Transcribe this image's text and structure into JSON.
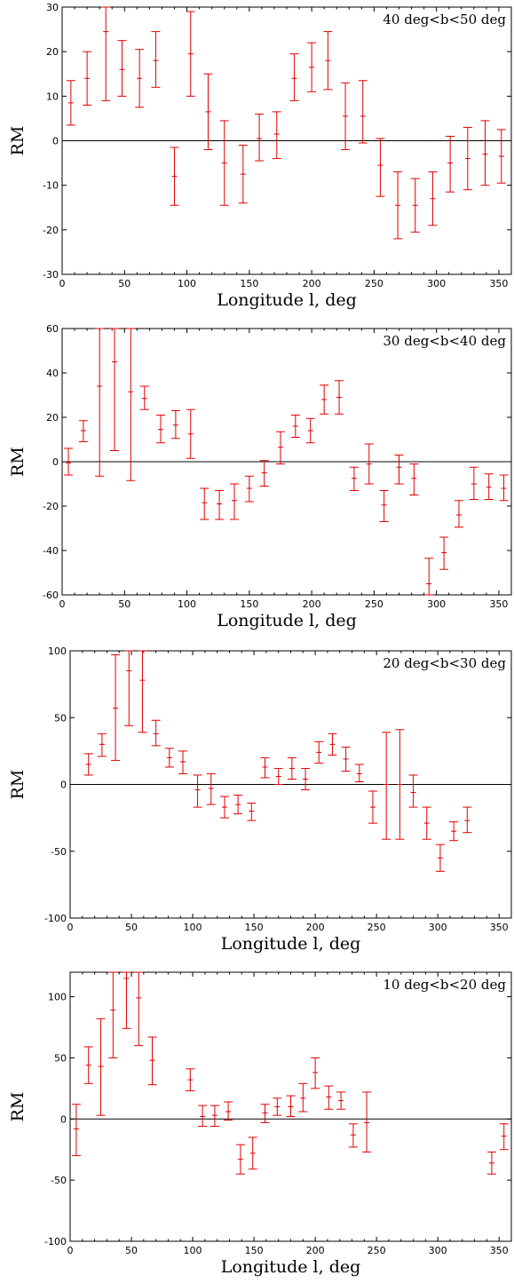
{
  "colors": {
    "errorbar": "#e00000",
    "axis": "#000000",
    "zeroline": "#000000"
  },
  "chart_data": [
    {
      "type": "scatter",
      "title": "40 deg<b<50 deg",
      "xlabel": "Longitude l, deg",
      "ylabel": "RM",
      "xlim": [
        0,
        360
      ],
      "ylim": [
        -30,
        30
      ],
      "xticks": [
        0,
        50,
        100,
        150,
        200,
        250,
        300,
        350
      ],
      "yticks": [
        -30,
        -20,
        -10,
        0,
        10,
        20,
        30
      ],
      "points": [
        {
          "x": 7,
          "y": 8.5,
          "lo": 3.5,
          "hi": 13.5
        },
        {
          "x": 20,
          "y": 14,
          "lo": 8,
          "hi": 20
        },
        {
          "x": 35,
          "y": 24.5,
          "lo": 9,
          "hi": 30
        },
        {
          "x": 48,
          "y": 16,
          "lo": 10,
          "hi": 22.5
        },
        {
          "x": 62,
          "y": 14,
          "lo": 7.5,
          "hi": 20.5
        },
        {
          "x": 75,
          "y": 18,
          "lo": 12,
          "hi": 24.5
        },
        {
          "x": 90,
          "y": -8,
          "lo": -14.5,
          "hi": -1.5
        },
        {
          "x": 103,
          "y": 19.5,
          "lo": 10,
          "hi": 29
        },
        {
          "x": 117,
          "y": 6.5,
          "lo": -2,
          "hi": 15
        },
        {
          "x": 130,
          "y": -5,
          "lo": -14.5,
          "hi": 4.5
        },
        {
          "x": 145,
          "y": -7.5,
          "lo": -14,
          "hi": -1
        },
        {
          "x": 158,
          "y": 0.5,
          "lo": -4.5,
          "hi": 6
        },
        {
          "x": 172,
          "y": 1.5,
          "lo": -4,
          "hi": 6.5
        },
        {
          "x": 186,
          "y": 14,
          "lo": 9,
          "hi": 19.5
        },
        {
          "x": 200,
          "y": 16.5,
          "lo": 11,
          "hi": 22
        },
        {
          "x": 213,
          "y": 18,
          "lo": 11.5,
          "hi": 24.5
        },
        {
          "x": 227,
          "y": 5.5,
          "lo": -2,
          "hi": 13
        },
        {
          "x": 241,
          "y": 5.5,
          "lo": -0.5,
          "hi": 13.5
        },
        {
          "x": 255,
          "y": -5.5,
          "lo": -12.5,
          "hi": 0.5
        },
        {
          "x": 269,
          "y": -14.5,
          "lo": -22,
          "hi": -7
        },
        {
          "x": 283,
          "y": -14.5,
          "lo": -20.5,
          "hi": -8.5
        },
        {
          "x": 297,
          "y": -13,
          "lo": -19,
          "hi": -7
        },
        {
          "x": 311,
          "y": -5,
          "lo": -11.5,
          "hi": 1
        },
        {
          "x": 325,
          "y": -4,
          "lo": -11,
          "hi": 3
        },
        {
          "x": 339,
          "y": -3,
          "lo": -10,
          "hi": 4.5
        },
        {
          "x": 352,
          "y": -3.5,
          "lo": -9.5,
          "hi": 2.5
        }
      ]
    },
    {
      "type": "scatter",
      "title": "30 deg<b<40 deg",
      "xlabel": "Longitude l, deg",
      "ylabel": "RM",
      "xlim": [
        0,
        360
      ],
      "ylim": [
        -60,
        60
      ],
      "xticks": [
        0,
        50,
        100,
        150,
        200,
        250,
        300,
        350
      ],
      "yticks": [
        -60,
        -40,
        -20,
        0,
        20,
        40,
        60
      ],
      "points": [
        {
          "x": 5,
          "y": -0.5,
          "lo": -6,
          "hi": 6
        },
        {
          "x": 17,
          "y": 14,
          "lo": 9,
          "hi": 18.5
        },
        {
          "x": 30,
          "y": 34,
          "lo": -6.5,
          "hi": 60
        },
        {
          "x": 42,
          "y": 45,
          "lo": 5,
          "hi": 60
        },
        {
          "x": 55,
          "y": 31.5,
          "lo": -8.5,
          "hi": 60
        },
        {
          "x": 66,
          "y": 28.5,
          "lo": 23.5,
          "hi": 34
        },
        {
          "x": 79,
          "y": 14.5,
          "lo": 8.5,
          "hi": 21
        },
        {
          "x": 91,
          "y": 16.5,
          "lo": 10.5,
          "hi": 23
        },
        {
          "x": 103,
          "y": 12.5,
          "lo": 1.5,
          "hi": 23.5
        },
        {
          "x": 114,
          "y": -18.5,
          "lo": -26,
          "hi": -12
        },
        {
          "x": 126,
          "y": -19,
          "lo": -26,
          "hi": -13
        },
        {
          "x": 138,
          "y": -17.5,
          "lo": -26,
          "hi": -10
        },
        {
          "x": 150,
          "y": -12,
          "lo": -18,
          "hi": -6.5
        },
        {
          "x": 162,
          "y": -5,
          "lo": -11,
          "hi": 0.5
        },
        {
          "x": 175,
          "y": 6.5,
          "lo": -1,
          "hi": 13.5
        },
        {
          "x": 187,
          "y": 16,
          "lo": 11,
          "hi": 21
        },
        {
          "x": 199,
          "y": 14,
          "lo": 8.5,
          "hi": 19.5
        },
        {
          "x": 210,
          "y": 28,
          "lo": 21.5,
          "hi": 34.5
        },
        {
          "x": 222,
          "y": 29,
          "lo": 21.5,
          "hi": 36.5
        },
        {
          "x": 234,
          "y": -7.5,
          "lo": -13,
          "hi": -2.5
        },
        {
          "x": 246,
          "y": -1,
          "lo": -10,
          "hi": 8
        },
        {
          "x": 258,
          "y": -19.5,
          "lo": -27,
          "hi": -13
        },
        {
          "x": 270,
          "y": -2.5,
          "lo": -10,
          "hi": 3
        },
        {
          "x": 282,
          "y": -7.5,
          "lo": -15,
          "hi": -1
        },
        {
          "x": 294,
          "y": -55,
          "lo": -60,
          "hi": -43.5
        },
        {
          "x": 306,
          "y": -41,
          "lo": -48.5,
          "hi": -34
        },
        {
          "x": 318,
          "y": -24,
          "lo": -29.5,
          "hi": -17.5
        },
        {
          "x": 330,
          "y": -10,
          "lo": -17,
          "hi": -2.5
        },
        {
          "x": 342,
          "y": -11.5,
          "lo": -17,
          "hi": -5.5
        },
        {
          "x": 354,
          "y": -12,
          "lo": -17.5,
          "hi": -6
        }
      ]
    },
    {
      "type": "scatter",
      "title": "20 deg<b<30 deg",
      "xlabel": "Longitude l, deg",
      "ylabel": "RM",
      "xlim": [
        0,
        360
      ],
      "ylim": [
        -100,
        100
      ],
      "xticks": [
        0,
        50,
        100,
        150,
        200,
        250,
        300,
        350
      ],
      "yticks": [
        -100,
        -50,
        0,
        50,
        100
      ],
      "points": [
        {
          "x": 15,
          "y": 15,
          "lo": 7,
          "hi": 23
        },
        {
          "x": 26,
          "y": 30,
          "lo": 21,
          "hi": 38
        },
        {
          "x": 37,
          "y": 57,
          "lo": 18,
          "hi": 97
        },
        {
          "x": 48,
          "y": 85,
          "lo": 44,
          "hi": 100
        },
        {
          "x": 59,
          "y": 78,
          "lo": 39,
          "hi": 100
        },
        {
          "x": 70,
          "y": 38,
          "lo": 29,
          "hi": 48
        },
        {
          "x": 81,
          "y": 20,
          "lo": 13,
          "hi": 27
        },
        {
          "x": 92,
          "y": 17,
          "lo": 8,
          "hi": 25
        },
        {
          "x": 104,
          "y": -4,
          "lo": -17,
          "hi": 7
        },
        {
          "x": 115,
          "y": -3,
          "lo": -15,
          "hi": 8
        },
        {
          "x": 126,
          "y": -17,
          "lo": -25,
          "hi": -9
        },
        {
          "x": 137,
          "y": -15,
          "lo": -22,
          "hi": -8
        },
        {
          "x": 148,
          "y": -20,
          "lo": -27,
          "hi": -14
        },
        {
          "x": 159,
          "y": 13,
          "lo": 5,
          "hi": 20
        },
        {
          "x": 170,
          "y": 6,
          "lo": 0,
          "hi": 12
        },
        {
          "x": 181,
          "y": 12,
          "lo": 4,
          "hi": 20
        },
        {
          "x": 192,
          "y": 4,
          "lo": -4,
          "hi": 12
        },
        {
          "x": 203,
          "y": 24,
          "lo": 16,
          "hi": 32
        },
        {
          "x": 214,
          "y": 30,
          "lo": 22,
          "hi": 38
        },
        {
          "x": 225,
          "y": 19,
          "lo": 10,
          "hi": 28
        },
        {
          "x": 236,
          "y": 8,
          "lo": 2,
          "hi": 15
        },
        {
          "x": 247,
          "y": -17,
          "lo": -29,
          "hi": -5
        },
        {
          "x": 258,
          "y": 0,
          "lo": -41,
          "hi": 39
        },
        {
          "x": 269,
          "y": 0,
          "lo": -41,
          "hi": 41
        },
        {
          "x": 280,
          "y": -6,
          "lo": -17,
          "hi": 7
        },
        {
          "x": 291,
          "y": -29,
          "lo": -41,
          "hi": -17
        },
        {
          "x": 302,
          "y": -55,
          "lo": -65,
          "hi": -45
        },
        {
          "x": 313,
          "y": -35,
          "lo": -42,
          "hi": -28
        },
        {
          "x": 324,
          "y": -27,
          "lo": -36,
          "hi": -17
        }
      ]
    },
    {
      "type": "scatter",
      "title": "10 deg<b<20 deg",
      "xlabel": "Longitude l, deg",
      "ylabel": "RM",
      "xlim": [
        0,
        360
      ],
      "ylim": [
        -100,
        120
      ],
      "xticks": [
        0,
        50,
        100,
        150,
        200,
        250,
        300,
        350
      ],
      "yticks": [
        -100,
        -50,
        0,
        50,
        100
      ],
      "points": [
        {
          "x": 5,
          "y": -8,
          "lo": -30,
          "hi": 12
        },
        {
          "x": 15,
          "y": 44,
          "lo": 29,
          "hi": 59
        },
        {
          "x": 25,
          "y": 43,
          "lo": 3,
          "hi": 82
        },
        {
          "x": 35,
          "y": 89,
          "lo": 50,
          "hi": 120
        },
        {
          "x": 46,
          "y": 115,
          "lo": 74,
          "hi": 120
        },
        {
          "x": 56,
          "y": 99,
          "lo": 60,
          "hi": 120
        },
        {
          "x": 67,
          "y": 48,
          "lo": 28,
          "hi": 67
        },
        {
          "x": 98,
          "y": 32,
          "lo": 23,
          "hi": 41
        },
        {
          "x": 108,
          "y": 2,
          "lo": -6,
          "hi": 11
        },
        {
          "x": 118,
          "y": 3,
          "lo": -6,
          "hi": 11
        },
        {
          "x": 129,
          "y": 6,
          "lo": -1,
          "hi": 14
        },
        {
          "x": 139,
          "y": -33,
          "lo": -45,
          "hi": -21
        },
        {
          "x": 149,
          "y": -28,
          "lo": -41,
          "hi": -15
        },
        {
          "x": 159,
          "y": 5,
          "lo": -3,
          "hi": 12
        },
        {
          "x": 169,
          "y": 10,
          "lo": 3,
          "hi": 17
        },
        {
          "x": 180,
          "y": 10,
          "lo": 2,
          "hi": 19
        },
        {
          "x": 190,
          "y": 17,
          "lo": 6,
          "hi": 29
        },
        {
          "x": 200,
          "y": 38,
          "lo": 25,
          "hi": 50
        },
        {
          "x": 211,
          "y": 18,
          "lo": 8,
          "hi": 27
        },
        {
          "x": 221,
          "y": 15,
          "lo": 8,
          "hi": 22
        },
        {
          "x": 231,
          "y": -13,
          "lo": -23,
          "hi": -4
        },
        {
          "x": 242,
          "y": -3,
          "lo": -27,
          "hi": 22
        },
        {
          "x": 344,
          "y": -36,
          "lo": -45,
          "hi": -27
        },
        {
          "x": 354,
          "y": -14,
          "lo": -25,
          "hi": -4
        }
      ]
    }
  ]
}
